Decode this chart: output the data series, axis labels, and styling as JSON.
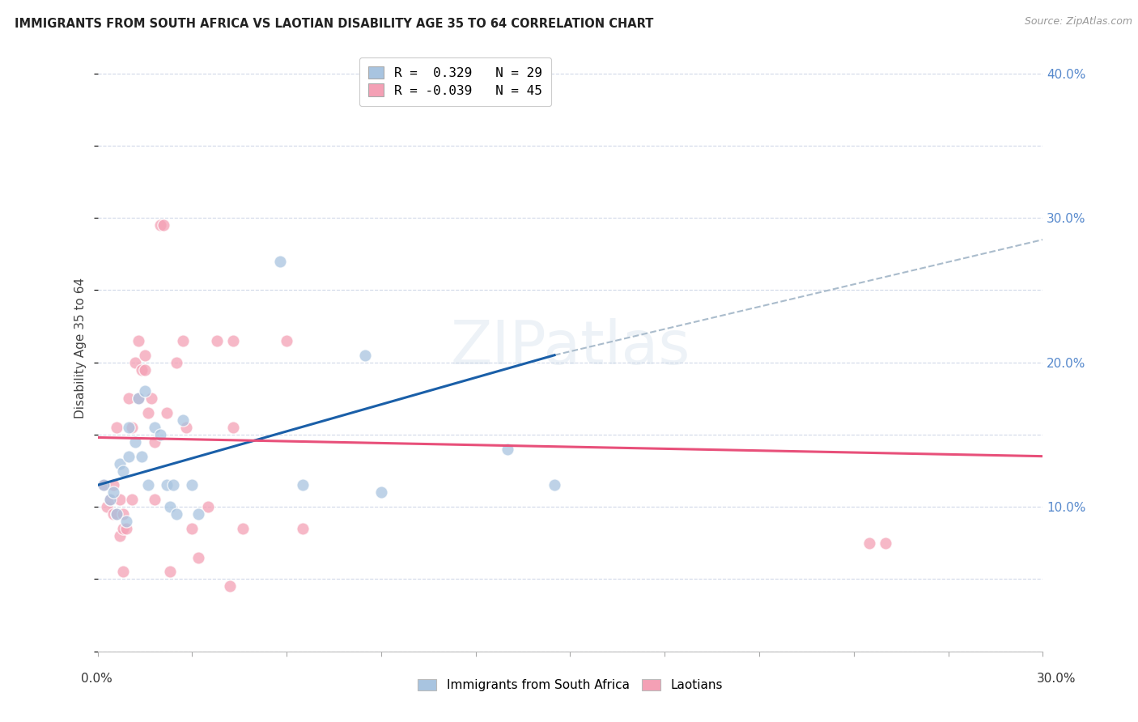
{
  "title": "IMMIGRANTS FROM SOUTH AFRICA VS LAOTIAN DISABILITY AGE 35 TO 64 CORRELATION CHART",
  "source": "Source: ZipAtlas.com",
  "ylabel": "Disability Age 35 to 64",
  "right_yticks": [
    10.0,
    20.0,
    30.0,
    40.0
  ],
  "xlim": [
    0.0,
    0.3
  ],
  "ylim": [
    0.0,
    0.42
  ],
  "R_blue": 0.329,
  "N_blue": 29,
  "R_pink": -0.039,
  "N_pink": 45,
  "blue_color": "#a8c4e0",
  "pink_color": "#f4a0b5",
  "blue_line_color": "#1a5fa8",
  "pink_line_color": "#e8507a",
  "dashed_line_color": "#aabccc",
  "background_color": "#ffffff",
  "grid_color": "#d0d8e8",
  "blue_scatter": [
    [
      0.002,
      0.115
    ],
    [
      0.004,
      0.105
    ],
    [
      0.005,
      0.11
    ],
    [
      0.006,
      0.095
    ],
    [
      0.007,
      0.13
    ],
    [
      0.008,
      0.125
    ],
    [
      0.009,
      0.09
    ],
    [
      0.01,
      0.135
    ],
    [
      0.01,
      0.155
    ],
    [
      0.012,
      0.145
    ],
    [
      0.013,
      0.175
    ],
    [
      0.014,
      0.135
    ],
    [
      0.015,
      0.18
    ],
    [
      0.016,
      0.115
    ],
    [
      0.018,
      0.155
    ],
    [
      0.02,
      0.15
    ],
    [
      0.022,
      0.115
    ],
    [
      0.023,
      0.1
    ],
    [
      0.024,
      0.115
    ],
    [
      0.025,
      0.095
    ],
    [
      0.027,
      0.16
    ],
    [
      0.03,
      0.115
    ],
    [
      0.032,
      0.095
    ],
    [
      0.058,
      0.27
    ],
    [
      0.065,
      0.115
    ],
    [
      0.085,
      0.205
    ],
    [
      0.09,
      0.11
    ],
    [
      0.13,
      0.14
    ],
    [
      0.145,
      0.115
    ]
  ],
  "pink_scatter": [
    [
      0.002,
      0.115
    ],
    [
      0.003,
      0.1
    ],
    [
      0.004,
      0.105
    ],
    [
      0.005,
      0.095
    ],
    [
      0.005,
      0.115
    ],
    [
      0.006,
      0.155
    ],
    [
      0.006,
      0.095
    ],
    [
      0.007,
      0.08
    ],
    [
      0.007,
      0.105
    ],
    [
      0.008,
      0.085
    ],
    [
      0.008,
      0.095
    ],
    [
      0.008,
      0.055
    ],
    [
      0.009,
      0.085
    ],
    [
      0.01,
      0.175
    ],
    [
      0.011,
      0.105
    ],
    [
      0.011,
      0.155
    ],
    [
      0.012,
      0.2
    ],
    [
      0.013,
      0.215
    ],
    [
      0.013,
      0.175
    ],
    [
      0.014,
      0.195
    ],
    [
      0.015,
      0.195
    ],
    [
      0.015,
      0.205
    ],
    [
      0.016,
      0.165
    ],
    [
      0.017,
      0.175
    ],
    [
      0.018,
      0.105
    ],
    [
      0.018,
      0.145
    ],
    [
      0.02,
      0.295
    ],
    [
      0.021,
      0.295
    ],
    [
      0.022,
      0.165
    ],
    [
      0.023,
      0.055
    ],
    [
      0.025,
      0.2
    ],
    [
      0.027,
      0.215
    ],
    [
      0.028,
      0.155
    ],
    [
      0.03,
      0.085
    ],
    [
      0.032,
      0.065
    ],
    [
      0.035,
      0.1
    ],
    [
      0.038,
      0.215
    ],
    [
      0.042,
      0.045
    ],
    [
      0.043,
      0.215
    ],
    [
      0.043,
      0.155
    ],
    [
      0.046,
      0.085
    ],
    [
      0.06,
      0.215
    ],
    [
      0.065,
      0.085
    ],
    [
      0.245,
      0.075
    ],
    [
      0.25,
      0.075
    ]
  ],
  "blue_line_x": [
    0.0,
    0.145
  ],
  "blue_line_y": [
    0.115,
    0.205
  ],
  "dash_line_x": [
    0.145,
    0.3
  ],
  "dash_line_y": [
    0.205,
    0.285
  ],
  "pink_line_x": [
    0.0,
    0.3
  ],
  "pink_line_y": [
    0.148,
    0.135
  ]
}
